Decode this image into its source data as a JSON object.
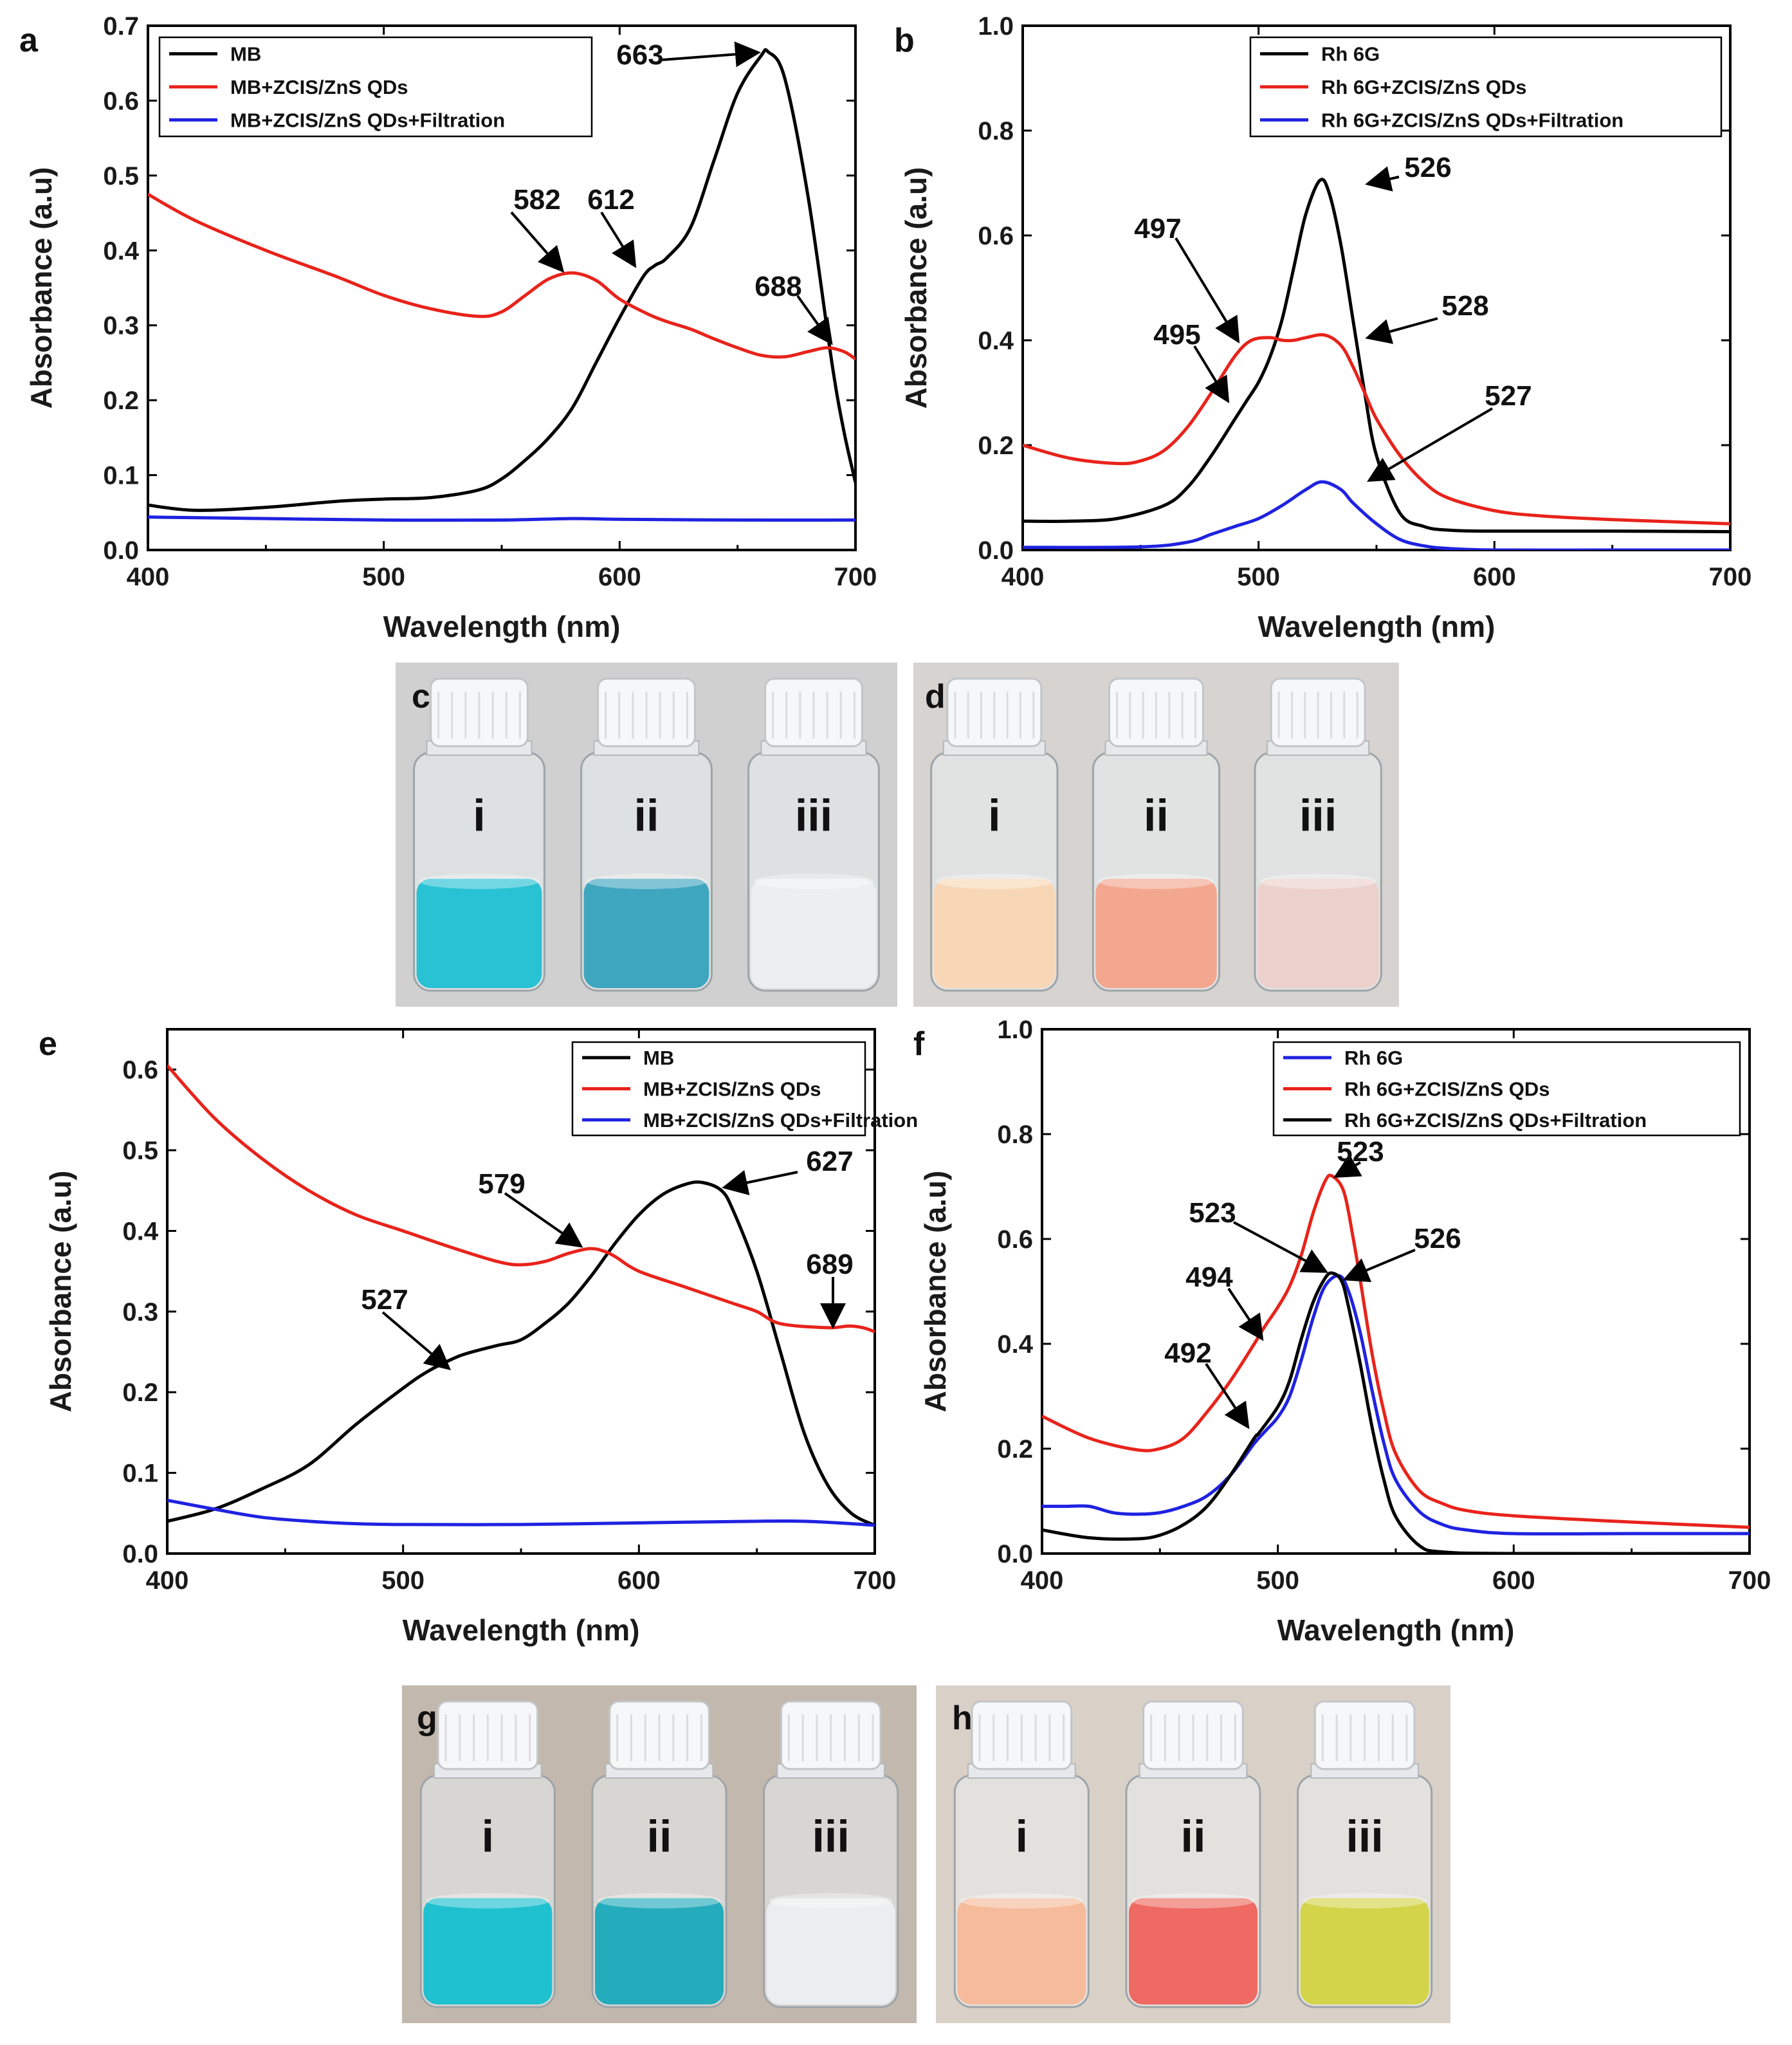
{
  "chart_data": [
    {
      "id": "a",
      "panel": "a",
      "type": "line",
      "xlabel": "Wavelength (nm)",
      "ylabel": "Absorbance (a.u)",
      "xlim": [
        400,
        700
      ],
      "ylim": [
        0,
        0.7
      ],
      "xticks": [
        400,
        500,
        600,
        700
      ],
      "yticks": [
        "0.0",
        "0.1",
        "0.2",
        "0.3",
        "0.4",
        "0.5",
        "0.6",
        "0.7"
      ],
      "legend_position": "top-left",
      "series": [
        {
          "name": "MB",
          "color": "#000000",
          "x": [
            400,
            420,
            450,
            480,
            500,
            520,
            540,
            550,
            560,
            570,
            580,
            590,
            600,
            610,
            615,
            620,
            630,
            640,
            650,
            660,
            663,
            670,
            680,
            690,
            695,
            700
          ],
          "y": [
            0.06,
            0.053,
            0.057,
            0.065,
            0.068,
            0.07,
            0.08,
            0.095,
            0.12,
            0.15,
            0.19,
            0.25,
            0.31,
            0.365,
            0.38,
            0.39,
            0.43,
            0.52,
            0.61,
            0.66,
            0.665,
            0.63,
            0.47,
            0.25,
            0.16,
            0.09
          ]
        },
        {
          "name": "MB+ZCIS/ZnS QDs",
          "color": "#e8231b",
          "x": [
            400,
            420,
            450,
            480,
            500,
            520,
            540,
            550,
            560,
            570,
            580,
            590,
            600,
            612,
            620,
            630,
            640,
            650,
            660,
            670,
            680,
            688,
            695,
            700
          ],
          "y": [
            0.475,
            0.44,
            0.4,
            0.365,
            0.34,
            0.322,
            0.312,
            0.318,
            0.34,
            0.362,
            0.37,
            0.36,
            0.335,
            0.315,
            0.305,
            0.295,
            0.282,
            0.27,
            0.26,
            0.258,
            0.265,
            0.27,
            0.265,
            0.255
          ]
        },
        {
          "name": "MB+ZCIS/ZnS QDs+Filtration",
          "color": "#1f22e0",
          "x": [
            400,
            450,
            500,
            550,
            580,
            600,
            650,
            700
          ],
          "y": [
            0.044,
            0.042,
            0.04,
            0.04,
            0.042,
            0.041,
            0.04,
            0.04
          ]
        }
      ],
      "annotations": [
        {
          "text": "663",
          "x": 663,
          "y": 0.665
        },
        {
          "text": "582",
          "x": 582,
          "y": 0.37
        },
        {
          "text": "612",
          "x": 612,
          "y": 0.378
        },
        {
          "text": "688",
          "x": 688,
          "y": 0.27
        }
      ]
    },
    {
      "id": "b",
      "panel": "b",
      "type": "line",
      "xlabel": "Wavelength (nm)",
      "ylabel": "Absorbance (a.u)",
      "xlim": [
        400,
        700
      ],
      "ylim": [
        0,
        1.0
      ],
      "xticks": [
        400,
        500,
        600,
        700
      ],
      "yticks": [
        "0.0",
        "0.2",
        "0.4",
        "0.6",
        "0.8",
        "1.0"
      ],
      "legend_position": "top-right",
      "series": [
        {
          "name": "Rh 6G",
          "color": "#000000",
          "x": [
            400,
            420,
            440,
            460,
            470,
            480,
            490,
            495,
            500,
            505,
            510,
            515,
            520,
            526,
            530,
            535,
            540,
            545,
            550,
            560,
            570,
            580,
            600,
            650,
            700
          ],
          "y": [
            0.055,
            0.055,
            0.06,
            0.085,
            0.12,
            0.18,
            0.25,
            0.285,
            0.32,
            0.37,
            0.44,
            0.54,
            0.64,
            0.705,
            0.68,
            0.58,
            0.44,
            0.3,
            0.18,
            0.07,
            0.045,
            0.038,
            0.036,
            0.036,
            0.035
          ]
        },
        {
          "name": "Rh 6G+ZCIS/ZnS QDs",
          "color": "#e8231b",
          "x": [
            400,
            420,
            440,
            450,
            460,
            470,
            480,
            490,
            497,
            505,
            510,
            515,
            520,
            528,
            535,
            540,
            545,
            550,
            560,
            570,
            580,
            600,
            620,
            650,
            700
          ],
          "y": [
            0.2,
            0.175,
            0.165,
            0.17,
            0.19,
            0.235,
            0.3,
            0.37,
            0.4,
            0.405,
            0.4,
            0.4,
            0.405,
            0.41,
            0.39,
            0.35,
            0.3,
            0.25,
            0.18,
            0.13,
            0.1,
            0.075,
            0.065,
            0.058,
            0.05
          ]
        },
        {
          "name": "Rh 6G+ZCIS/ZnS QDs+Filtration",
          "color": "#1f22e0",
          "x": [
            400,
            450,
            470,
            480,
            490,
            500,
            510,
            520,
            527,
            535,
            540,
            550,
            560,
            570,
            580,
            600,
            650,
            700
          ],
          "y": [
            0.005,
            0.006,
            0.015,
            0.03,
            0.045,
            0.06,
            0.085,
            0.115,
            0.13,
            0.115,
            0.09,
            0.05,
            0.02,
            0.008,
            0.003,
            0.0,
            0.0,
            0.0
          ]
        }
      ],
      "annotations": [
        {
          "text": "526",
          "x": 526,
          "y": 0.705
        },
        {
          "text": "497",
          "x": 497,
          "y": 0.4
        },
        {
          "text": "495",
          "x": 495,
          "y": 0.29
        },
        {
          "text": "528",
          "x": 528,
          "y": 0.41
        },
        {
          "text": "527",
          "x": 527,
          "y": 0.13
        }
      ]
    },
    {
      "id": "e",
      "panel": "e",
      "type": "line",
      "xlabel": "Wavelength (nm)",
      "ylabel": "Absorbance (a.u)",
      "xlim": [
        400,
        700
      ],
      "ylim": [
        0,
        0.65
      ],
      "xticks": [
        400,
        500,
        600,
        700
      ],
      "yticks": [
        "0.0",
        "0.1",
        "0.2",
        "0.3",
        "0.4",
        "0.5",
        "0.6"
      ],
      "legend_position": "top-right",
      "series": [
        {
          "name": "MB",
          "color": "#000000",
          "x": [
            400,
            420,
            440,
            460,
            480,
            500,
            510,
            520,
            527,
            540,
            550,
            560,
            570,
            580,
            590,
            600,
            610,
            620,
            627,
            635,
            640,
            650,
            660,
            670,
            680,
            690,
            700
          ],
          "y": [
            0.04,
            0.055,
            0.08,
            0.11,
            0.16,
            0.205,
            0.225,
            0.24,
            0.248,
            0.258,
            0.265,
            0.285,
            0.31,
            0.345,
            0.385,
            0.42,
            0.445,
            0.458,
            0.46,
            0.45,
            0.425,
            0.35,
            0.25,
            0.15,
            0.085,
            0.05,
            0.035
          ]
        },
        {
          "name": "MB+ZCIS/ZnS QDs",
          "color": "#e8231b",
          "x": [
            400,
            420,
            440,
            460,
            480,
            500,
            520,
            540,
            550,
            560,
            570,
            579,
            585,
            590,
            600,
            620,
            640,
            650,
            660,
            680,
            689,
            695,
            700
          ],
          "y": [
            0.605,
            0.54,
            0.49,
            0.45,
            0.42,
            0.4,
            0.38,
            0.362,
            0.358,
            0.362,
            0.372,
            0.378,
            0.375,
            0.368,
            0.35,
            0.33,
            0.31,
            0.3,
            0.285,
            0.28,
            0.282,
            0.28,
            0.275
          ]
        },
        {
          "name": "MB+ZCIS/ZnS QDs+Filtration",
          "color": "#1f22e0",
          "x": [
            400,
            420,
            440,
            460,
            480,
            500,
            550,
            600,
            650,
            670,
            690,
            700
          ],
          "y": [
            0.066,
            0.055,
            0.045,
            0.04,
            0.037,
            0.036,
            0.036,
            0.038,
            0.04,
            0.04,
            0.037,
            0.035
          ]
        }
      ],
      "annotations": [
        {
          "text": "627",
          "x": 627,
          "y": 0.46
        },
        {
          "text": "579",
          "x": 579,
          "y": 0.378
        },
        {
          "text": "527",
          "x": 527,
          "y": 0.248
        },
        {
          "text": "689",
          "x": 689,
          "y": 0.282
        }
      ]
    },
    {
      "id": "f",
      "panel": "f",
      "type": "line",
      "xlabel": "Wavelength (nm)",
      "ylabel": "Absorbance (a.u)",
      "xlim": [
        400,
        700
      ],
      "ylim": [
        0,
        1.0
      ],
      "xticks": [
        400,
        500,
        600,
        700
      ],
      "yticks": [
        "0.0",
        "0.2",
        "0.4",
        "0.6",
        "0.8",
        "1.0"
      ],
      "legend_position": "top-right",
      "series": [
        {
          "name": "Rh 6G",
          "color": "#1f22e0",
          "x": [
            400,
            410,
            420,
            430,
            440,
            450,
            460,
            470,
            480,
            490,
            495,
            500,
            505,
            510,
            515,
            520,
            526,
            530,
            535,
            540,
            545,
            550,
            560,
            570,
            580,
            600,
            650,
            700
          ],
          "y": [
            0.09,
            0.09,
            0.09,
            0.078,
            0.075,
            0.078,
            0.09,
            0.11,
            0.15,
            0.21,
            0.235,
            0.26,
            0.3,
            0.37,
            0.45,
            0.51,
            0.53,
            0.5,
            0.42,
            0.31,
            0.21,
            0.14,
            0.08,
            0.055,
            0.045,
            0.038,
            0.038,
            0.038
          ]
        },
        {
          "name": "Rh 6G+ZCIS/ZnS QDs",
          "color": "#e8231b",
          "x": [
            400,
            420,
            440,
            450,
            460,
            470,
            480,
            490,
            494,
            500,
            505,
            510,
            515,
            520,
            523,
            528,
            532,
            535,
            540,
            545,
            550,
            560,
            570,
            580,
            600,
            650,
            700
          ],
          "y": [
            0.262,
            0.22,
            0.198,
            0.2,
            0.22,
            0.27,
            0.33,
            0.4,
            0.43,
            0.47,
            0.51,
            0.57,
            0.65,
            0.71,
            0.72,
            0.69,
            0.6,
            0.52,
            0.38,
            0.27,
            0.19,
            0.12,
            0.095,
            0.082,
            0.072,
            0.06,
            0.05
          ]
        },
        {
          "name": "Rh 6G+ZCIS/ZnS QDs+Filtration",
          "color": "#000000",
          "x": [
            400,
            420,
            440,
            450,
            460,
            470,
            480,
            490,
            492,
            500,
            505,
            510,
            515,
            520,
            523,
            527,
            530,
            535,
            540,
            545,
            550,
            560,
            570,
            600,
            700
          ],
          "y": [
            0.045,
            0.03,
            0.028,
            0.035,
            0.055,
            0.09,
            0.15,
            0.22,
            0.23,
            0.28,
            0.33,
            0.41,
            0.48,
            0.525,
            0.535,
            0.52,
            0.47,
            0.36,
            0.24,
            0.14,
            0.07,
            0.015,
            0.003,
            0.0,
            0.0
          ]
        }
      ],
      "annotations": [
        {
          "text": "523",
          "x": 523,
          "y": 0.72
        },
        {
          "text": "523",
          "x": 523,
          "y": 0.535
        },
        {
          "text": "526",
          "x": 526,
          "y": 0.53
        },
        {
          "text": "494",
          "x": 494,
          "y": 0.43
        },
        {
          "text": "492",
          "x": 492,
          "y": 0.23
        }
      ]
    }
  ],
  "photos": [
    {
      "panel": "c",
      "liquid_colors": [
        "#28c2d4",
        "#3fa6c0",
        "#eceff1"
      ],
      "vial_labels": [
        "i",
        "ii",
        "iii"
      ]
    },
    {
      "panel": "d",
      "liquid_colors": [
        "#f7d7b6",
        "#f3a78e",
        "#ecd0cb"
      ],
      "vial_labels": [
        "i",
        "ii",
        "iii"
      ]
    },
    {
      "panel": "g",
      "liquid_colors": [
        "#1fc0d0",
        "#24acbc",
        "#eaeef0"
      ],
      "vial_labels": [
        "i",
        "ii",
        "iii"
      ]
    },
    {
      "panel": "h",
      "liquid_colors": [
        "#f6bb9a",
        "#ef6a62",
        "#d4d44a"
      ],
      "vial_labels": [
        "i",
        "ii",
        "iii"
      ]
    }
  ]
}
